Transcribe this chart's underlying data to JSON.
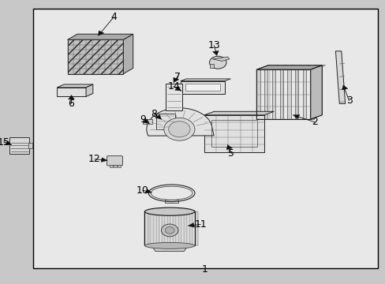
{
  "background_color": "#c8c8c8",
  "box_facecolor": "#e8e8e8",
  "box_edgecolor": "#000000",
  "figure_size": [
    4.89,
    3.6
  ],
  "dpi": 100,
  "font_size": 9,
  "font_size_small": 7.5,
  "label_color": "#000000",
  "line_color": "#000000",
  "part_fill": "#f0f0f0",
  "part_edge": "#222222",
  "hatch_color": "#555555"
}
